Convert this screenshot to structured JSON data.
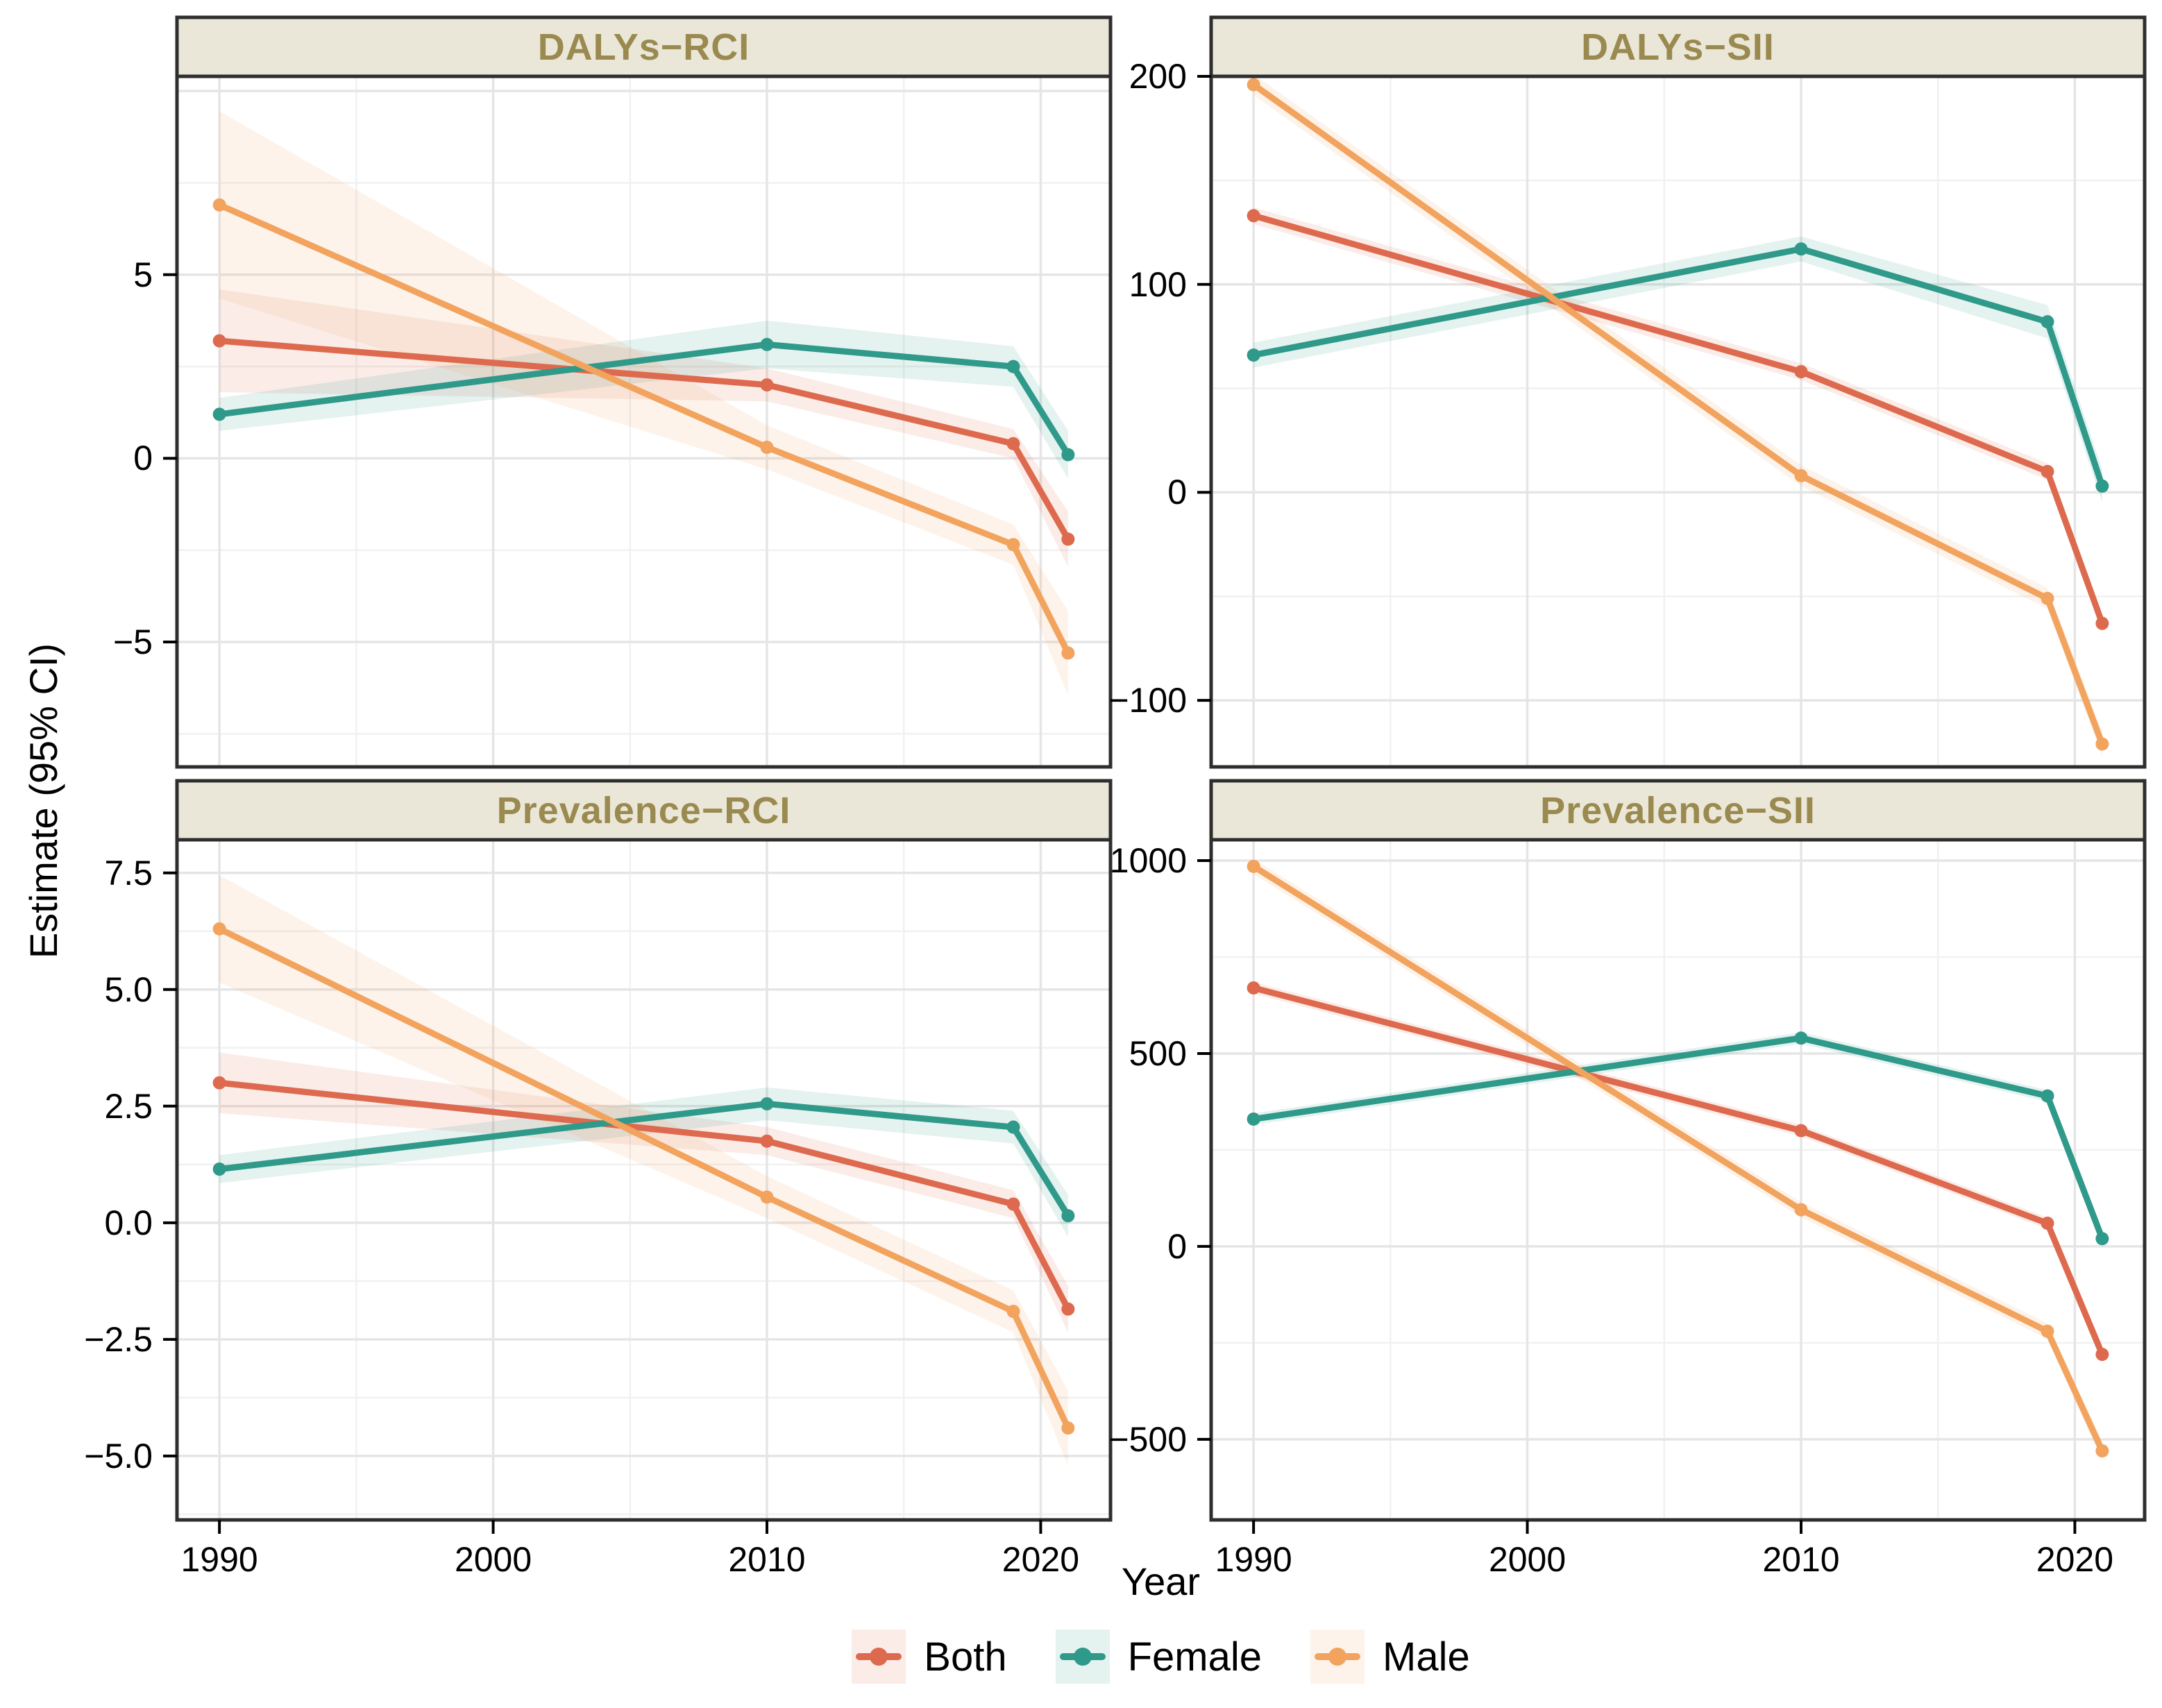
{
  "figure": {
    "background": "#ffffff",
    "panel_border_color": "#2e2e2e",
    "grid_major_color": "#e5e5e5",
    "grid_minor_color": "#f1f1f1",
    "strip_background": "#eae7d8",
    "strip_text_color": "#9a8a50",
    "ribbon_opacity": 0.13
  },
  "axes": {
    "x_label": "Year",
    "y_label": "Estimate (95% CI)"
  },
  "legend": {
    "items": [
      {
        "label": "Both",
        "color": "#dd6a4e"
      },
      {
        "label": "Female",
        "color": "#2f998a"
      },
      {
        "label": "Male",
        "color": "#f2a35e"
      }
    ]
  },
  "chart_data": [
    {
      "type": "line",
      "title": "DALYs−RCI",
      "col": 0,
      "row": 0,
      "x": [
        1990,
        2010,
        2019,
        2021
      ],
      "xlim": [
        1988.45,
        2022.55
      ],
      "ylim": [
        -8.4,
        10.4
      ],
      "x_ticks": {
        "values": [
          1990,
          2000,
          2010,
          2020
        ],
        "labels": [
          "1990",
          "2000",
          "2010",
          "2020"
        ]
      },
      "x_minor": [
        1995,
        2005,
        2015
      ],
      "y_ticks": {
        "values": [
          5,
          0,
          -5
        ],
        "labels": [
          "5",
          "0",
          "−5"
        ]
      },
      "y_major": [
        10,
        5,
        0,
        -5
      ],
      "y_minor": [
        7.5,
        2.5,
        -2.5,
        -7.5
      ],
      "grid": true,
      "legend_position": "bottom",
      "series": [
        {
          "name": "Both",
          "values": [
            3.2,
            2.0,
            0.4,
            -2.2
          ],
          "lower": [
            1.8,
            1.55,
            0.0,
            -2.95
          ],
          "upper": [
            4.6,
            2.45,
            0.8,
            -1.45
          ]
        },
        {
          "name": "Female",
          "values": [
            1.2,
            3.1,
            2.5,
            0.1
          ],
          "lower": [
            0.75,
            2.45,
            1.95,
            -0.55
          ],
          "upper": [
            1.65,
            3.75,
            3.05,
            0.75
          ]
        },
        {
          "name": "Male",
          "values": [
            6.9,
            0.3,
            -2.35,
            -5.3
          ],
          "lower": [
            4.35,
            -0.3,
            -2.9,
            -6.45
          ],
          "upper": [
            9.45,
            0.9,
            -1.8,
            -4.15
          ]
        }
      ]
    },
    {
      "type": "line",
      "title": "DALYs−SII",
      "col": 1,
      "row": 0,
      "x": [
        1990,
        2010,
        2019,
        2021
      ],
      "xlim": [
        1988.45,
        2022.55
      ],
      "ylim": [
        -132,
        200
      ],
      "x_ticks": {
        "values": [
          1990,
          2000,
          2010,
          2020
        ],
        "labels": [
          "1990",
          "2000",
          "2010",
          "2020"
        ]
      },
      "x_minor": [
        1995,
        2005,
        2015
      ],
      "y_ticks": {
        "values": [
          200,
          100,
          0,
          -100
        ],
        "labels": [
          "200",
          "100",
          "0",
          "−100"
        ]
      },
      "y_major": [
        200,
        100,
        0,
        -100
      ],
      "y_minor": [
        150,
        50,
        -50
      ],
      "grid": true,
      "legend_position": "bottom",
      "series": [
        {
          "name": "Both",
          "values": [
            133,
            58,
            10,
            -63
          ],
          "lower": [
            129,
            54,
            6,
            -67
          ],
          "upper": [
            137,
            62,
            14,
            -59
          ]
        },
        {
          "name": "Female",
          "values": [
            66,
            117,
            82,
            3
          ],
          "lower": [
            60,
            111,
            74,
            -5
          ],
          "upper": [
            72,
            123,
            90,
            11
          ]
        },
        {
          "name": "Male",
          "values": [
            196,
            8,
            -51,
            -121
          ],
          "lower": [
            191,
            3,
            -56,
            -127
          ],
          "upper": [
            201,
            13,
            -46,
            -115
          ]
        }
      ]
    },
    {
      "type": "line",
      "title": "Prevalence−RCI",
      "col": 0,
      "row": 1,
      "x": [
        1990,
        2010,
        2019,
        2021
      ],
      "xlim": [
        1988.45,
        2022.55
      ],
      "ylim": [
        -6.37,
        8.21
      ],
      "x_ticks": {
        "values": [
          1990,
          2000,
          2010,
          2020
        ],
        "labels": [
          "1990",
          "2000",
          "2010",
          "2020"
        ]
      },
      "x_minor": [
        1995,
        2005,
        2015
      ],
      "y_ticks": {
        "values": [
          7.5,
          5.0,
          2.5,
          0.0,
          -2.5,
          -5.0
        ],
        "labels": [
          "7.5",
          "5.0",
          "2.5",
          "0.0",
          "−2.5",
          "−5.0"
        ]
      },
      "y_major": [
        7.5,
        5.0,
        2.5,
        0.0,
        -2.5,
        -5.0
      ],
      "y_minor": [
        6.25,
        3.75,
        1.25,
        -1.25,
        -3.75,
        -6.25
      ],
      "grid": true,
      "legend_position": "bottom",
      "series": [
        {
          "name": "Both",
          "values": [
            3.0,
            1.75,
            0.4,
            -1.85
          ],
          "lower": [
            2.35,
            1.45,
            0.1,
            -2.35
          ],
          "upper": [
            3.65,
            2.05,
            0.7,
            -1.35
          ]
        },
        {
          "name": "Female",
          "values": [
            1.15,
            2.55,
            2.05,
            0.15
          ],
          "lower": [
            0.85,
            2.2,
            1.7,
            -0.3
          ],
          "upper": [
            1.45,
            2.9,
            2.4,
            0.6
          ]
        },
        {
          "name": "Male",
          "values": [
            6.3,
            0.55,
            -1.9,
            -4.4
          ],
          "lower": [
            5.15,
            0.1,
            -2.35,
            -5.2
          ],
          "upper": [
            7.45,
            1.0,
            -1.45,
            -3.6
          ]
        }
      ]
    },
    {
      "type": "line",
      "title": "Prevalence−SII",
      "col": 1,
      "row": 1,
      "x": [
        1990,
        2010,
        2019,
        2021
      ],
      "xlim": [
        1988.45,
        2022.55
      ],
      "ylim": [
        -709,
        1054
      ],
      "x_ticks": {
        "values": [
          1990,
          2000,
          2010,
          2020
        ],
        "labels": [
          "1990",
          "2000",
          "2010",
          "2020"
        ]
      },
      "x_minor": [
        1995,
        2005,
        2015
      ],
      "y_ticks": {
        "values": [
          1000,
          500,
          0,
          -500
        ],
        "labels": [
          "1000",
          "500",
          "0",
          "−500"
        ]
      },
      "y_major": [
        1000,
        500,
        0,
        -500
      ],
      "y_minor": [
        750,
        250,
        -250
      ],
      "grid": true,
      "legend_position": "bottom",
      "series": [
        {
          "name": "Both",
          "values": [
            670,
            300,
            60,
            -280
          ],
          "lower": [
            655,
            285,
            45,
            -300
          ],
          "upper": [
            685,
            315,
            75,
            -260
          ]
        },
        {
          "name": "Female",
          "values": [
            330,
            540,
            390,
            20
          ],
          "lower": [
            315,
            525,
            375,
            0
          ],
          "upper": [
            345,
            555,
            405,
            40
          ]
        },
        {
          "name": "Male",
          "values": [
            985,
            95,
            -220,
            -530
          ],
          "lower": [
            965,
            75,
            -240,
            -555
          ],
          "upper": [
            1005,
            115,
            -200,
            -505
          ]
        }
      ]
    }
  ]
}
